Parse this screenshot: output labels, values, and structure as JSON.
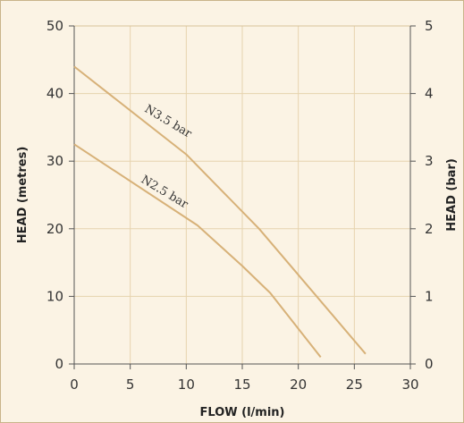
{
  "chart_data": {
    "type": "line",
    "xlabel": "FLOW (l/min)",
    "ylabel": "HEAD (metres)",
    "y2label": "HEAD (bar)",
    "xlim": [
      0,
      30
    ],
    "ylim": [
      0,
      50
    ],
    "y2lim": [
      0,
      5
    ],
    "x_ticks": [
      0,
      5,
      10,
      15,
      20,
      25,
      30
    ],
    "y_ticks": [
      0,
      10,
      20,
      30,
      40,
      50
    ],
    "y2_ticks": [
      0,
      1,
      2,
      3,
      4,
      5
    ],
    "grid": true,
    "series": [
      {
        "name": "N3.5 bar",
        "color": "#d7b178",
        "points": [
          [
            0,
            44
          ],
          [
            10,
            31
          ],
          [
            16.5,
            20
          ],
          [
            26,
            1.5
          ]
        ]
      },
      {
        "name": "N2.5 bar",
        "color": "#d7b178",
        "points": [
          [
            0,
            32.5
          ],
          [
            11,
            20.5
          ],
          [
            15,
            14.5
          ],
          [
            17.5,
            10.5
          ],
          [
            22,
            1
          ]
        ]
      }
    ]
  }
}
